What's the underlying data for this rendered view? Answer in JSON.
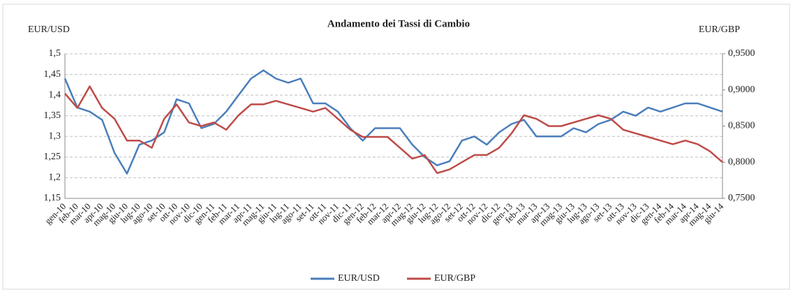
{
  "chart_data": {
    "type": "line",
    "title": "Andamento dei Tassi di Cambio",
    "y_label": "EUR/USD",
    "y2_label": "EUR/GBP",
    "categories": [
      "gen-10",
      "feb-10",
      "mar-10",
      "apr-10",
      "mag-10",
      "giu-10",
      "lug-10",
      "ago-10",
      "set-10",
      "ott-10",
      "nov-10",
      "dic-10",
      "gen-11",
      "feb-11",
      "mar-11",
      "apr-11",
      "mag-11",
      "giu-11",
      "lug-11",
      "ago-11",
      "set-11",
      "ott-11",
      "nov-11",
      "dic-11",
      "gen-12",
      "feb-12",
      "mar-12",
      "apr-12",
      "mag-12",
      "giu-12",
      "lug-12",
      "ago-12",
      "set-12",
      "ott-12",
      "nov-12",
      "dic-12",
      "gen-13",
      "feb-13",
      "mar-13",
      "apr-13",
      "mag-13",
      "giu-13",
      "lug-13",
      "ago-13",
      "set-13",
      "ott-13",
      "nov-13",
      "dic-13",
      "gen-14",
      "feb-14",
      "mar-14",
      "apr-14",
      "mag-14",
      "giu-14"
    ],
    "series": [
      {
        "name": "EUR/USD",
        "color": "#4a7ebb",
        "values": [
          1.44,
          1.37,
          1.36,
          1.34,
          1.26,
          1.21,
          1.28,
          1.29,
          1.31,
          1.39,
          1.38,
          1.32,
          1.33,
          1.36,
          1.4,
          1.44,
          1.46,
          1.44,
          1.43,
          1.44,
          1.38,
          1.38,
          1.36,
          1.32,
          1.29,
          1.32,
          1.32,
          1.32,
          1.28,
          1.25,
          1.23,
          1.24,
          1.29,
          1.3,
          1.28,
          1.31,
          1.33,
          1.34,
          1.3,
          1.3,
          1.3,
          1.32,
          1.31,
          1.33,
          1.34,
          1.36,
          1.35,
          1.37,
          1.36,
          1.37,
          1.38,
          1.38,
          1.37,
          1.36
        ]
      },
      {
        "name": "EUR/GBP",
        "color": "#be4b48",
        "axis": "y2",
        "values": [
          0.895,
          0.875,
          0.905,
          0.875,
          0.86,
          0.83,
          0.83,
          0.82,
          0.86,
          0.88,
          0.855,
          0.85,
          0.855,
          0.845,
          0.865,
          0.88,
          0.88,
          0.885,
          0.88,
          0.875,
          0.87,
          0.875,
          0.86,
          0.845,
          0.835,
          0.835,
          0.835,
          0.82,
          0.805,
          0.81,
          0.785,
          0.79,
          0.8,
          0.81,
          0.81,
          0.82,
          0.84,
          0.865,
          0.86,
          0.85,
          0.85,
          0.855,
          0.86,
          0.865,
          0.86,
          0.845,
          0.84,
          0.835,
          0.83,
          0.825,
          0.83,
          0.825,
          0.815,
          0.8
        ]
      }
    ],
    "ylim": [
      1.15,
      1.5
    ],
    "yticks": [
      {
        "value": 1.15,
        "label": "1,15"
      },
      {
        "value": 1.2,
        "label": "1,2"
      },
      {
        "value": 1.25,
        "label": "1,25"
      },
      {
        "value": 1.3,
        "label": "1,3"
      },
      {
        "value": 1.35,
        "label": "1,35"
      },
      {
        "value": 1.4,
        "label": "1,4"
      },
      {
        "value": 1.45,
        "label": "1,45"
      },
      {
        "value": 1.5,
        "label": "1,5"
      }
    ],
    "y2lim": [
      0.75,
      0.95
    ],
    "y2ticks": [
      {
        "value": 0.75,
        "label": "0,7500"
      },
      {
        "value": 0.8,
        "label": "0,8000"
      },
      {
        "value": 0.85,
        "label": "0,8500"
      },
      {
        "value": 0.9,
        "label": "0,9000"
      },
      {
        "value": 0.95,
        "label": "0,9500"
      }
    ],
    "grid": true,
    "legend": "bottom"
  }
}
